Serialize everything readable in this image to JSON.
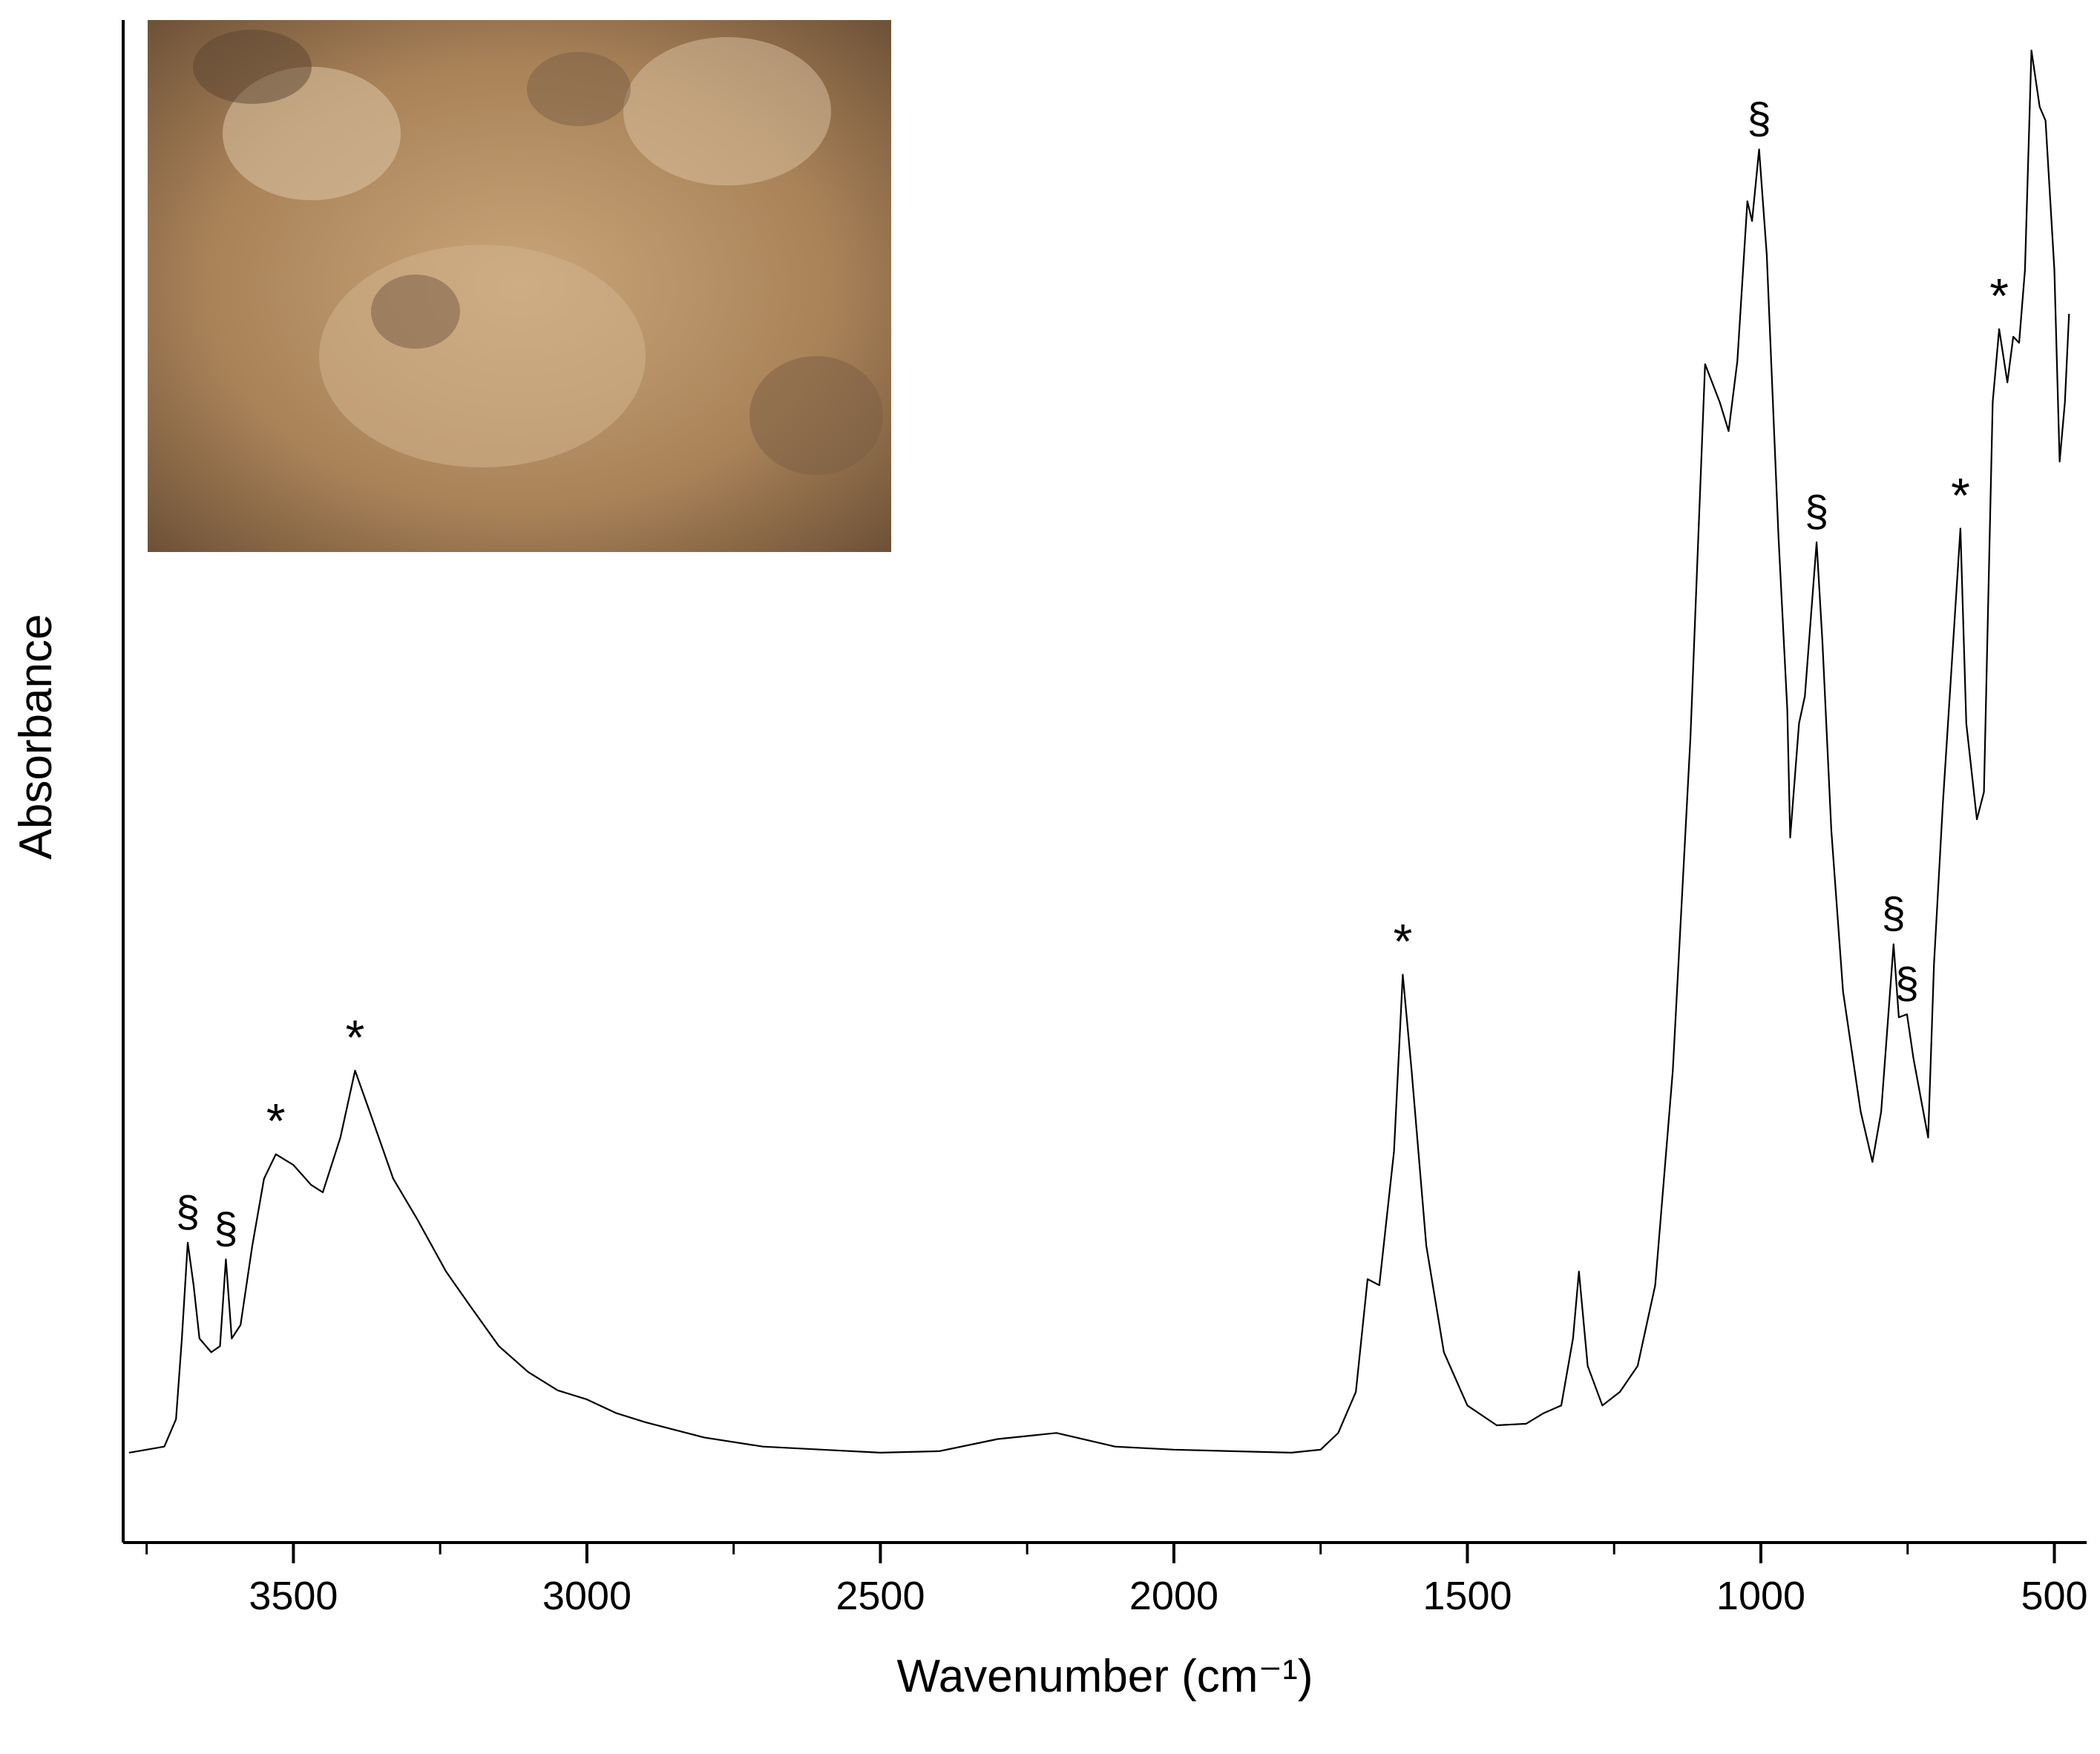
{
  "chart_data": {
    "type": "line",
    "x_label": "Wavenumber (cm⁻¹)",
    "y_label": "Absorbance",
    "xlim": [
      3790,
      445
    ],
    "ylim": [
      0,
      1
    ],
    "xticks": [
      3500,
      3000,
      2500,
      2000,
      1500,
      1000,
      500
    ],
    "minor_xticks": [
      3750,
      3250,
      2750,
      2250,
      1750,
      1250,
      750
    ],
    "color": "#000000",
    "x": [
      3780,
      3720,
      3700,
      3690,
      3680,
      3670,
      3660,
      3640,
      3625,
      3615,
      3605,
      3590,
      3570,
      3550,
      3530,
      3500,
      3470,
      3450,
      3420,
      3395,
      3370,
      3330,
      3290,
      3240,
      3200,
      3150,
      3100,
      3050,
      3000,
      2950,
      2900,
      2800,
      2700,
      2500,
      2400,
      2300,
      2200,
      2100,
      2000,
      1900,
      1800,
      1750,
      1720,
      1690,
      1670,
      1650,
      1625,
      1610,
      1595,
      1570,
      1540,
      1500,
      1450,
      1400,
      1370,
      1340,
      1320,
      1310,
      1295,
      1270,
      1240,
      1210,
      1180,
      1150,
      1120,
      1095,
      1070,
      1055,
      1040,
      1023,
      1015,
      1003,
      990,
      970,
      955,
      950,
      935,
      925,
      905,
      895,
      880,
      860,
      830,
      810,
      795,
      774,
      765,
      751,
      740,
      715,
      705,
      690,
      660,
      650,
      632,
      620,
      605,
      594,
      580,
      570,
      560,
      550,
      539,
      525,
      515,
      500,
      491,
      482,
      475
    ],
    "values": [
      0.059,
      0.063,
      0.081,
      0.134,
      0.197,
      0.169,
      0.134,
      0.125,
      0.129,
      0.186,
      0.134,
      0.143,
      0.195,
      0.239,
      0.255,
      0.248,
      0.235,
      0.23,
      0.266,
      0.31,
      0.283,
      0.239,
      0.213,
      0.178,
      0.156,
      0.129,
      0.112,
      0.1,
      0.094,
      0.085,
      0.079,
      0.069,
      0.063,
      0.059,
      0.06,
      0.068,
      0.072,
      0.063,
      0.061,
      0.06,
      0.059,
      0.061,
      0.072,
      0.099,
      0.173,
      0.169,
      0.257,
      0.373,
      0.31,
      0.195,
      0.125,
      0.09,
      0.077,
      0.078,
      0.085,
      0.09,
      0.134,
      0.178,
      0.116,
      0.09,
      0.099,
      0.116,
      0.169,
      0.31,
      0.529,
      0.774,
      0.749,
      0.73,
      0.776,
      0.881,
      0.868,
      0.915,
      0.846,
      0.661,
      0.547,
      0.463,
      0.538,
      0.556,
      0.657,
      0.591,
      0.468,
      0.362,
      0.283,
      0.25,
      0.283,
      0.393,
      0.345,
      0.347,
      0.318,
      0.266,
      0.38,
      0.485,
      0.666,
      0.538,
      0.475,
      0.493,
      0.749,
      0.797,
      0.762,
      0.792,
      0.788,
      0.836,
      0.98,
      0.943,
      0.934,
      0.836,
      0.71,
      0.749,
      0.807
    ],
    "annotations": [
      {
        "text": "§",
        "x": 3680,
        "y": 0.197
      },
      {
        "text": "§",
        "x": 3615,
        "y": 0.186
      },
      {
        "text": "*",
        "x": 3530,
        "y": 0.255
      },
      {
        "text": "*",
        "x": 3395,
        "y": 0.31
      },
      {
        "text": "*",
        "x": 1610,
        "y": 0.373
      },
      {
        "text": "§",
        "x": 1003,
        "y": 0.915
      },
      {
        "text": "§",
        "x": 905,
        "y": 0.657
      },
      {
        "text": "§",
        "x": 774,
        "y": 0.393
      },
      {
        "text": "§",
        "x": 751,
        "y": 0.347
      },
      {
        "text": "*",
        "x": 660,
        "y": 0.666
      },
      {
        "text": "*",
        "x": 594,
        "y": 0.797
      }
    ]
  }
}
